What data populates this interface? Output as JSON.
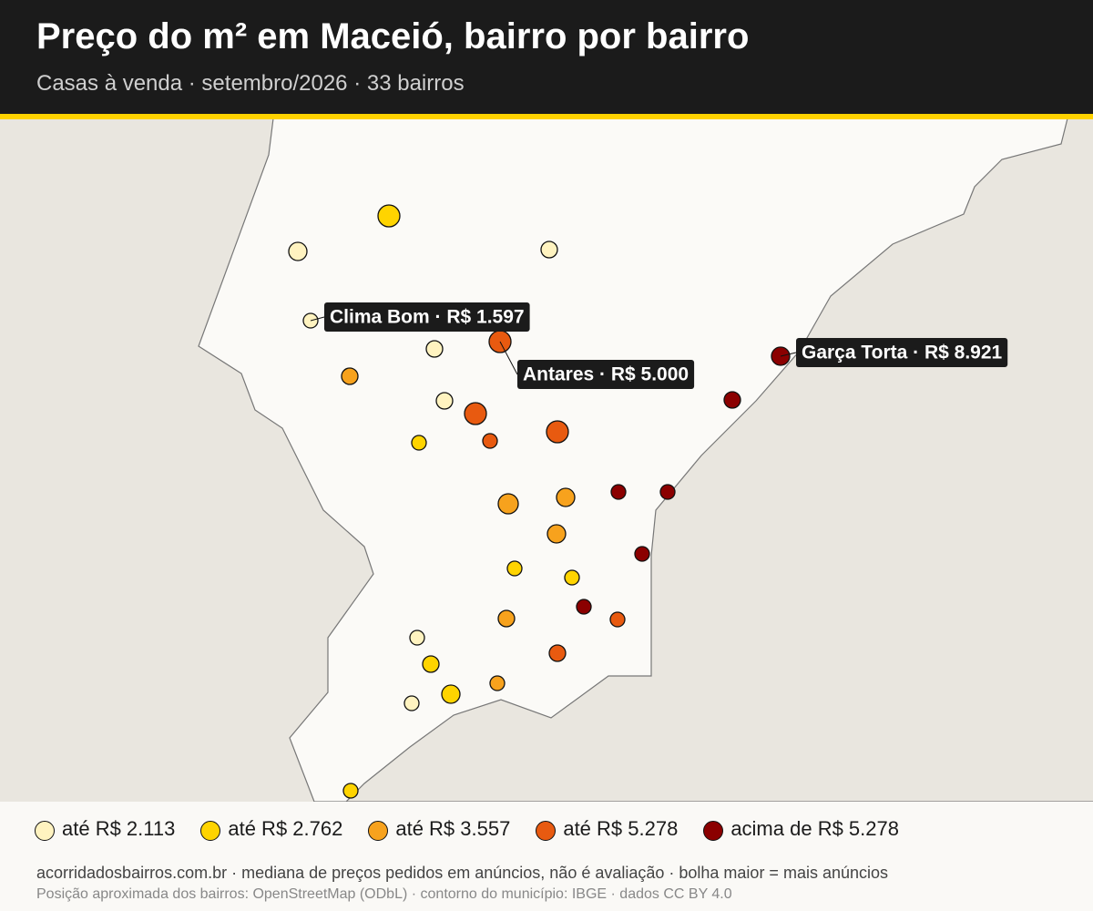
{
  "header": {
    "title": "Preço do m² em Maceió, bairro por bairro",
    "subtitle": "Casas à venda · setembro/2026 · 33 bairros"
  },
  "callouts": [
    "Clima Bom · R$ 1.597",
    "Antares · R$ 5.000",
    "Garça Torta · R$ 8.921"
  ],
  "legend": {
    "items": [
      {
        "label": "até R$ 2.113",
        "color": "#fff3c0"
      },
      {
        "label": "até R$ 2.762",
        "color": "#ffd400"
      },
      {
        "label": "até R$ 3.557",
        "color": "#f7a21d"
      },
      {
        "label": "até R$ 5.278",
        "color": "#e85a10"
      },
      {
        "label": "acima de R$ 5.278",
        "color": "#8b0000"
      }
    ]
  },
  "footer": {
    "note": "acorridadosbairros.com.br · mediana de preços pedidos em anúncios, não é avaliação · bolha maior = mais anúncios",
    "sources": "Posição aproximada dos bairros: OpenStreetMap (ODbL) · contorno do município: IBGE · dados CC BY 4.0"
  }
}
